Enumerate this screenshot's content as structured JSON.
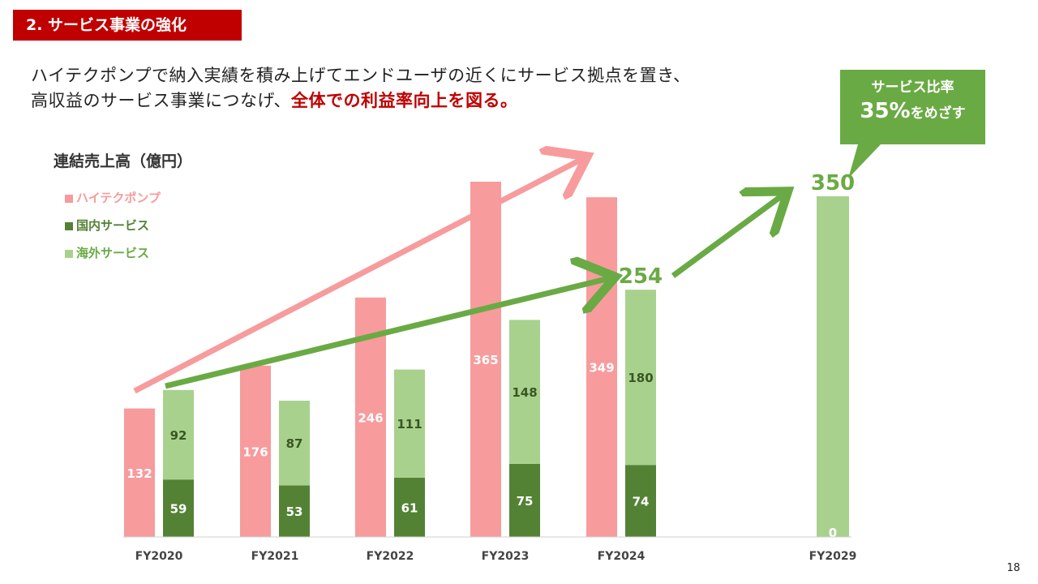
{
  "header": {
    "section_tag": "2. サービス事業の強化",
    "line1": "ハイテクポンプで納入実績を積み上げてエンドユーザの近くにサービス拠点を置き、",
    "line2_prefix": "高収益のサービス事業につなげ、",
    "line2_emphasis": "全体での利益率向上を図る。"
  },
  "callout": {
    "line1": "サービス比率",
    "line2_number": "35%",
    "line2_suffix": "をめざす"
  },
  "page_number": "18",
  "colors": {
    "hitech": "#f79b9c",
    "domestic": "#548235",
    "overseas": "#a9d18e",
    "accent_red": "#c00000",
    "accent_green": "#6aaa44"
  },
  "chart_data": {
    "type": "bar",
    "title": "連結売上高（億円）",
    "categories": [
      "FY2020",
      "FY2021",
      "FY2022",
      "FY2023",
      "FY2024",
      "FY2029"
    ],
    "legend": [
      "ハイテクポンプ",
      "国内サービス",
      "海外サービス"
    ],
    "legend_position": "top-left",
    "series": [
      {
        "name": "ハイテクポンプ",
        "values": [
          132,
          176,
          246,
          365,
          349,
          null
        ],
        "color": "#f79b9c"
      },
      {
        "name": "国内サービス",
        "values": [
          59,
          53,
          61,
          75,
          74,
          0
        ],
        "color": "#548235",
        "stack": "service"
      },
      {
        "name": "海外サービス",
        "values": [
          92,
          87,
          111,
          148,
          180,
          null
        ],
        "color": "#a9d18e",
        "stack": "service"
      }
    ],
    "service_totals": {
      "FY2024": 254,
      "FY2029": 350
    },
    "fy2029_service_total": 350,
    "ylim": [
      0,
      365
    ],
    "grid": false
  }
}
